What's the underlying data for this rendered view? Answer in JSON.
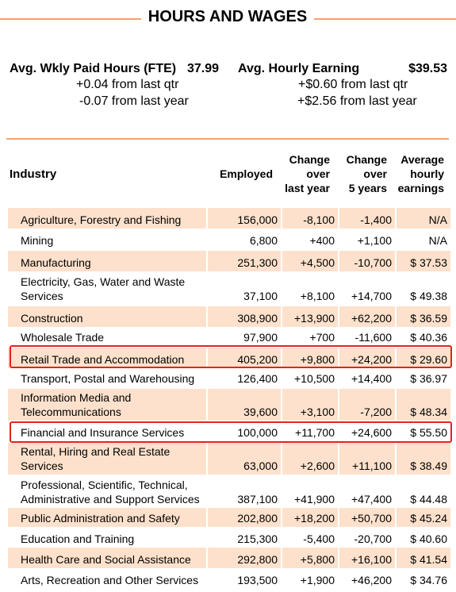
{
  "title": "HOURS AND WAGES",
  "summary": {
    "left": {
      "label": "Avg. Wkly Paid Hours (FTE)",
      "value": "37.99",
      "qtr_change": "+0.04",
      "qtr_text": "from last qtr",
      "year_change": "-0.07",
      "year_text": "from last year"
    },
    "right": {
      "label": "Avg. Hourly Earning",
      "value": "$39.53",
      "qtr_change": "+$0.60",
      "qtr_text": "from last qtr",
      "year_change": "+$2.56",
      "year_text": "from last year"
    }
  },
  "table": {
    "headers": {
      "industry": "Industry",
      "employed": "Employed",
      "change_qtr": [
        "Change",
        "over",
        "last year"
      ],
      "change_5y": [
        "Change",
        "over",
        "5 years"
      ],
      "earnings": [
        "Average",
        "hourly",
        "earnings"
      ]
    },
    "rows": [
      {
        "industry": "Agriculture, Forestry and Fishing",
        "employed": "156,000",
        "change_year": "-8,100",
        "change_5y": "-1,400",
        "earnings": "N/A",
        "shaded": true
      },
      {
        "industry": "Mining",
        "employed": "6,800",
        "change_year": "+400",
        "change_5y": "+1,100",
        "earnings": "N/A",
        "shaded": false
      },
      {
        "industry": "Manufacturing",
        "employed": "251,300",
        "change_year": "+4,500",
        "change_5y": "-10,700",
        "earnings": "$ 37.53",
        "shaded": true
      },
      {
        "industry": "Electricity, Gas, Water and Waste Services",
        "employed": "37,100",
        "change_year": "+8,100",
        "change_5y": "+14,700",
        "earnings": "$ 49.38",
        "shaded": false
      },
      {
        "industry": "Construction",
        "employed": "308,900",
        "change_year": "+13,900",
        "change_5y": "+62,200",
        "earnings": "$ 36.59",
        "shaded": true
      },
      {
        "industry": "Wholesale Trade",
        "employed": "97,900",
        "change_year": "+700",
        "change_5y": "-11,600",
        "earnings": "$ 40.36",
        "shaded": false
      },
      {
        "industry": "Retail Trade and Accommodation",
        "employed": "405,200",
        "change_year": "+9,800",
        "change_5y": "+24,200",
        "earnings": "$ 29.60",
        "shaded": true
      },
      {
        "industry": "Transport, Postal and Warehousing",
        "employed": "126,400",
        "change_year": "+10,500",
        "change_5y": "+14,400",
        "earnings": "$ 36.97",
        "shaded": false
      },
      {
        "industry": "Information Media and Telecommunications",
        "employed": "39,600",
        "change_year": "+3,100",
        "change_5y": "-7,200",
        "earnings": "$ 48.34",
        "shaded": true
      },
      {
        "industry": "Financial and Insurance Services",
        "employed": "100,000",
        "change_year": "+11,700",
        "change_5y": "+24,600",
        "earnings": "$ 55.50",
        "shaded": false
      },
      {
        "industry": "Rental, Hiring and Real Estate Services",
        "employed": "63,000",
        "change_year": "+2,600",
        "change_5y": "+11,100",
        "earnings": "$ 38.49",
        "shaded": true
      },
      {
        "industry": "Professional, Scientific, Technical, Administrative and Support Services",
        "employed": "387,100",
        "change_year": "+41,900",
        "change_5y": "+47,400",
        "earnings": "$ 44.48",
        "shaded": false
      },
      {
        "industry": "Public Administration and Safety",
        "employed": "202,800",
        "change_year": "+18,200",
        "change_5y": "+50,700",
        "earnings": "$ 45.24",
        "shaded": true
      },
      {
        "industry": "Education and Training",
        "employed": "215,300",
        "change_year": "-5,400",
        "change_5y": "-20,700",
        "earnings": "$ 40.60",
        "shaded": false
      },
      {
        "industry": "Health Care and Social Assistance",
        "employed": "292,800",
        "change_year": "+5,800",
        "change_5y": "+16,100",
        "earnings": "$ 41.54",
        "shaded": true
      },
      {
        "industry": "Arts, Recreation and Other Services",
        "employed": "193,500",
        "change_year": "+1,900",
        "change_5y": "+46,200",
        "earnings": "$ 34.76",
        "shaded": false
      }
    ],
    "highlighted_rows": [
      "Retail Trade and Accommodation",
      "Financial and Insurance Services"
    ]
  },
  "colors": {
    "accent_line": "#f4a26a",
    "row_shade": "#fde1cc",
    "highlight_border": "#e3241b"
  }
}
